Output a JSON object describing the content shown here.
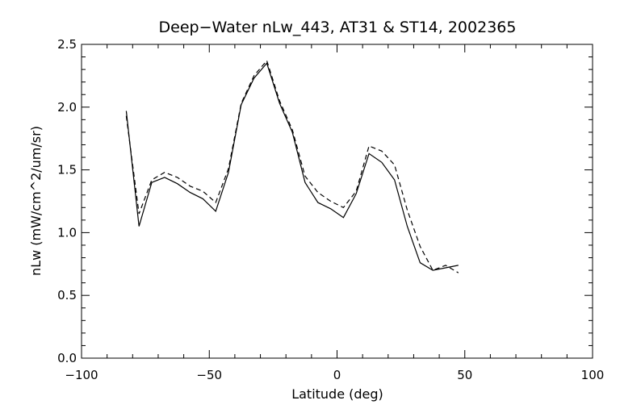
{
  "chart_data": {
    "type": "line",
    "title": "Deep−Water nLw_443, AT31 & ST14, 2002365",
    "xlabel": "Latitude (deg)",
    "ylabel": "nLw (mW/cm^2/um/sr)",
    "xlim": [
      -100,
      100
    ],
    "ylim": [
      0,
      2.5
    ],
    "xticks": [
      -100,
      -50,
      0,
      50,
      100
    ],
    "xtick_labels": [
      "−100",
      "−50",
      "0",
      "50",
      "100"
    ],
    "yticks": [
      0,
      0.5,
      1,
      1.5,
      2,
      2.5
    ],
    "ytick_labels": [
      "0.0",
      "0.5",
      "1.0",
      "1.5",
      "2.0",
      "2.5"
    ],
    "grid": false,
    "legend": "none",
    "series": [
      {
        "style": "solid",
        "x": [
          -82.5,
          -77.5,
          -72.5,
          -67.5,
          -62.5,
          -57.5,
          -52.5,
          -47.5,
          -42.5,
          -37.5,
          -32.5,
          -27.5,
          -22.5,
          -17.5,
          -12.5,
          -7.5,
          -2.5,
          2.5,
          7.5,
          12.5,
          17.5,
          22.5,
          27.5,
          32.5,
          37.5,
          42.5,
          47.5
        ],
        "y": [
          1.97,
          1.05,
          1.4,
          1.44,
          1.39,
          1.32,
          1.27,
          1.17,
          1.48,
          2.02,
          2.23,
          2.35,
          2.03,
          1.8,
          1.4,
          1.24,
          1.19,
          1.12,
          1.31,
          1.63,
          1.56,
          1.42,
          1.05,
          0.76,
          0.7,
          0.72,
          0.74
        ]
      },
      {
        "style": "dashed",
        "x": [
          -82.5,
          -77.5,
          -72.5,
          -67.5,
          -62.5,
          -57.5,
          -52.5,
          -47.5,
          -42.5,
          -37.5,
          -32.5,
          -27.5,
          -22.5,
          -17.5,
          -12.5,
          -7.5,
          -2.5,
          2.5,
          7.5,
          12.5,
          17.5,
          22.5,
          27.5,
          32.5,
          37.5,
          42.5,
          47.5
        ],
        "y": [
          1.93,
          1.15,
          1.42,
          1.48,
          1.44,
          1.37,
          1.33,
          1.24,
          1.51,
          2.03,
          2.25,
          2.37,
          2.05,
          1.82,
          1.45,
          1.32,
          1.25,
          1.2,
          1.33,
          1.69,
          1.65,
          1.54,
          1.18,
          0.89,
          0.7,
          0.74,
          0.68
        ]
      }
    ]
  }
}
